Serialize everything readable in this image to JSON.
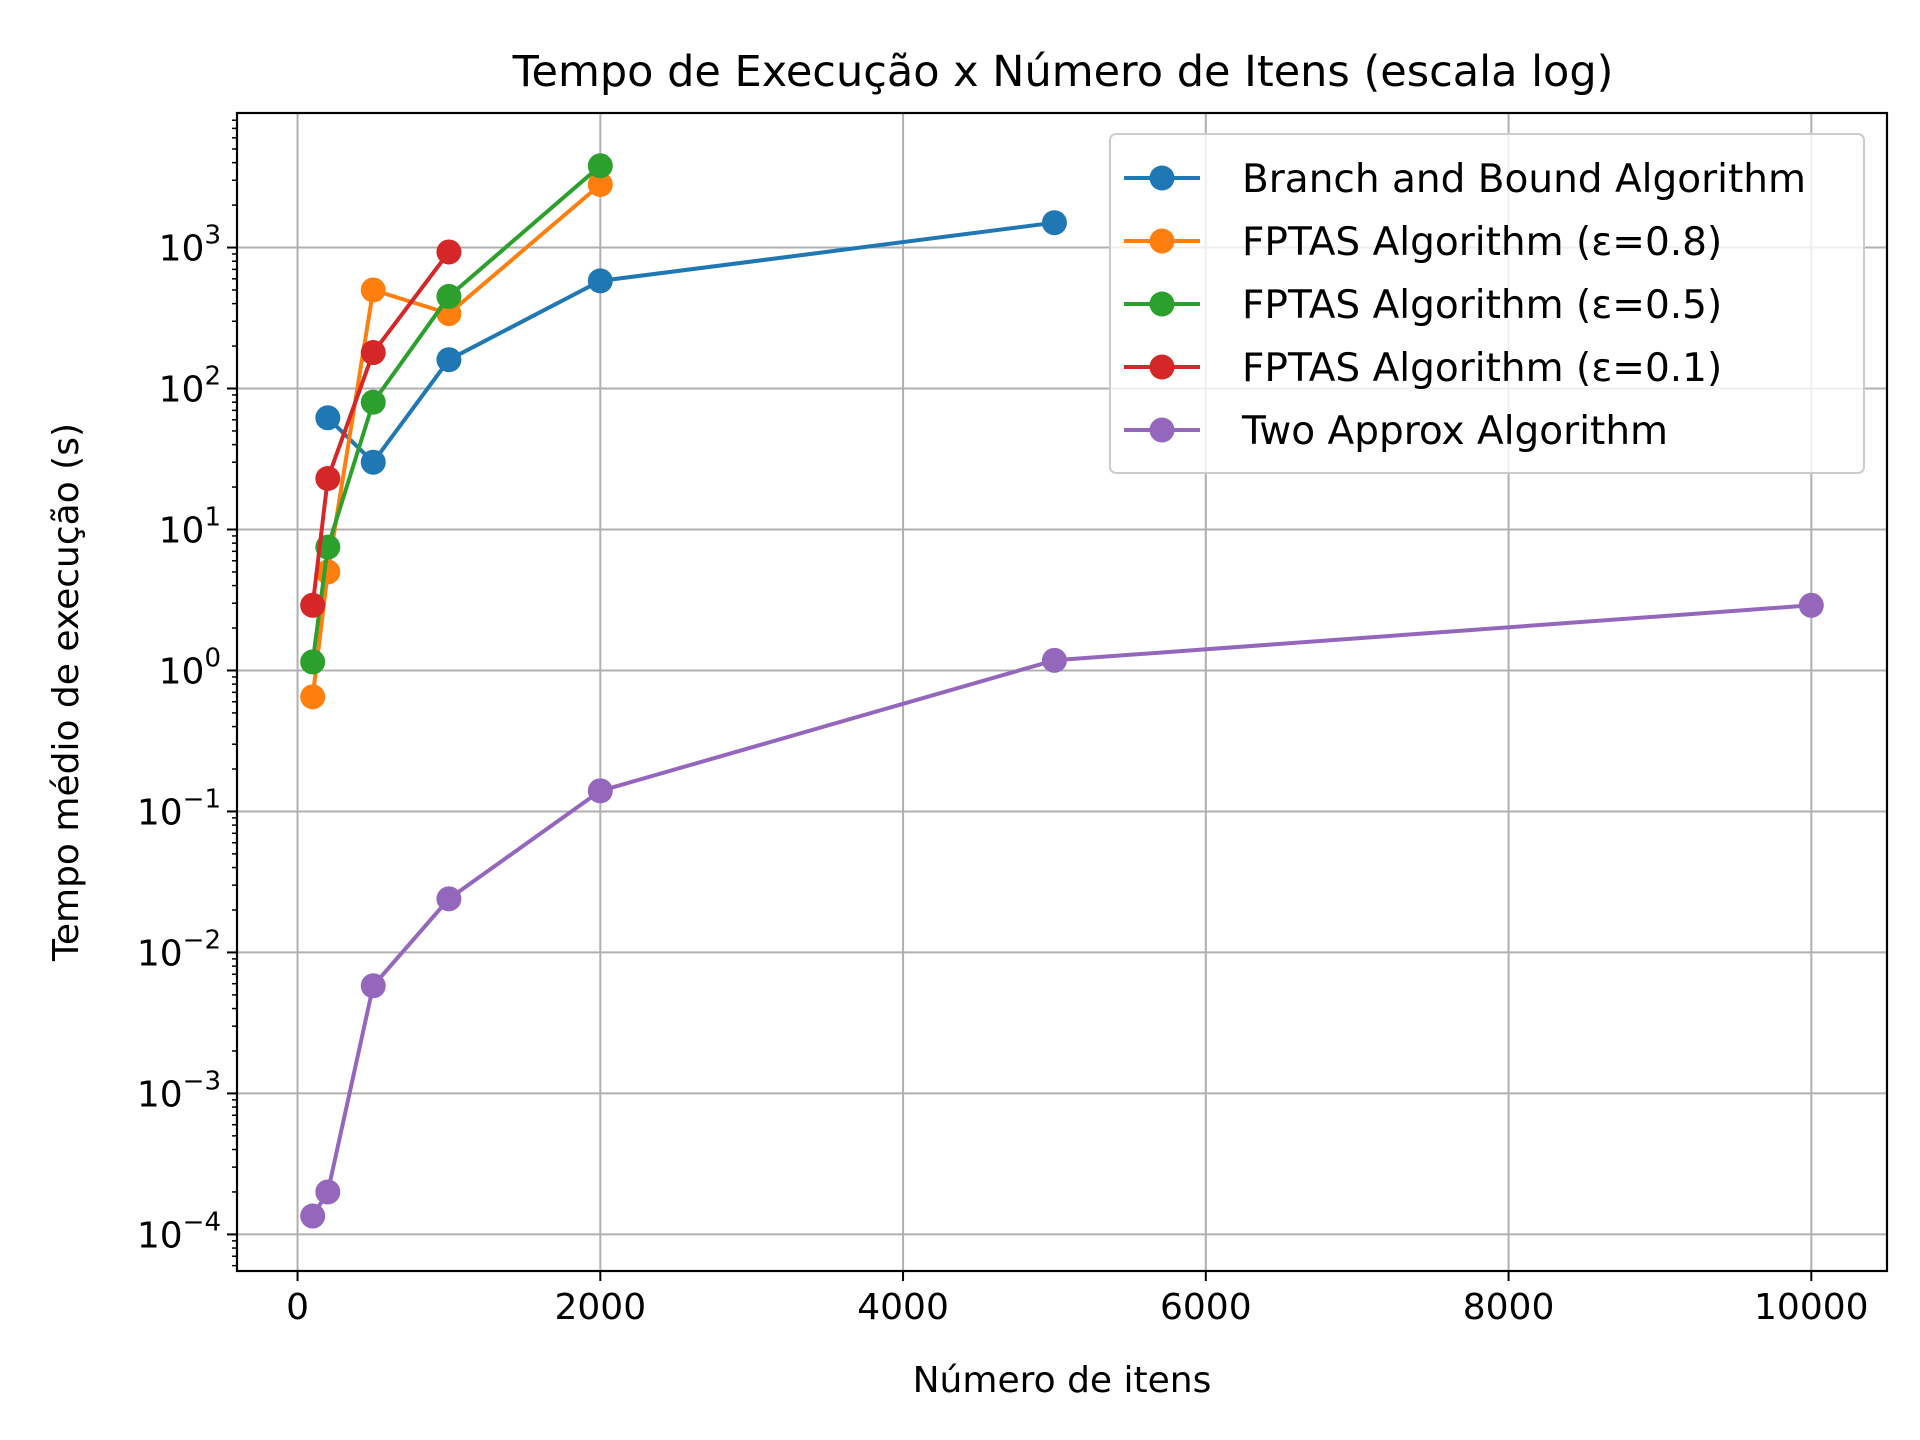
{
  "chart_data": {
    "type": "line",
    "title": "Tempo de Execução x Número de Itens (escala log)",
    "xlabel": "Número de itens",
    "ylabel": "Tempo médio de execução (s)",
    "xlim": [
      -400,
      10500
    ],
    "ylim": [
      5.5e-05,
      9000
    ],
    "yscale": "log",
    "grid": true,
    "legend_position": "top-right",
    "xticks": [
      0,
      2000,
      4000,
      6000,
      8000,
      10000
    ],
    "xtick_labels": [
      "0",
      "2000",
      "4000",
      "6000",
      "8000",
      "10000"
    ],
    "yticks": [
      0.0001,
      0.001,
      0.01,
      0.1,
      1,
      10,
      100,
      1000
    ],
    "ytick_labels": [
      {
        "base": "10",
        "exp": "−4"
      },
      {
        "base": "10",
        "exp": "−3"
      },
      {
        "base": "10",
        "exp": "−2"
      },
      {
        "base": "10",
        "exp": "−1"
      },
      {
        "base": "10",
        "exp": "0"
      },
      {
        "base": "10",
        "exp": "1"
      },
      {
        "base": "10",
        "exp": "2"
      },
      {
        "base": "10",
        "exp": "3"
      }
    ],
    "series": [
      {
        "name": "Branch and Bound Algorithm",
        "color": "#1f77b4",
        "x": [
          200,
          500,
          1000,
          2000,
          5000
        ],
        "y": [
          62,
          30,
          160,
          580,
          1500
        ]
      },
      {
        "name": "FPTAS Algorithm (ε=0.8)",
        "color": "#ff7f0e",
        "x": [
          100,
          200,
          500,
          1000,
          2000
        ],
        "y": [
          0.65,
          5,
          500,
          340,
          2800
        ]
      },
      {
        "name": "FPTAS Algorithm (ε=0.5)",
        "color": "#2ca02c",
        "x": [
          100,
          200,
          500,
          1000,
          2000
        ],
        "y": [
          1.15,
          7.5,
          80,
          450,
          3800
        ]
      },
      {
        "name": "FPTAS Algorithm (ε=0.1)",
        "color": "#d62728",
        "x": [
          100,
          200,
          500,
          1000
        ],
        "y": [
          2.9,
          23,
          180,
          930
        ]
      },
      {
        "name": "Two Approx Algorithm",
        "color": "#9467bd",
        "x": [
          100,
          200,
          500,
          1000,
          2000,
          5000,
          10000
        ],
        "y": [
          0.000135,
          0.0002,
          0.0058,
          0.024,
          0.14,
          1.18,
          2.9
        ]
      }
    ]
  }
}
